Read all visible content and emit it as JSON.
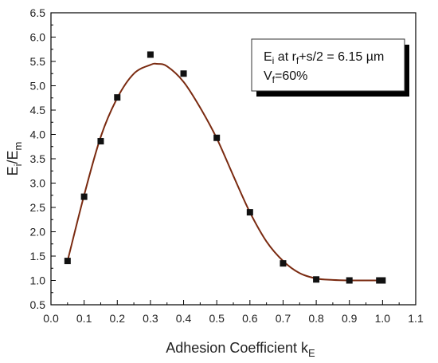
{
  "chart_data": {
    "type": "scatter",
    "xlabel": {
      "main": "Adhesion Coefficient k",
      "sub": "E"
    },
    "ylabel": {
      "a": "E",
      "a_sub": "i",
      "slash": "/",
      "b": "E",
      "b_sub": "m"
    },
    "xlim": [
      0.0,
      1.1
    ],
    "ylim": [
      0.5,
      6.5
    ],
    "x_ticks": [
      "0.0",
      "0.1",
      "0.2",
      "0.3",
      "0.4",
      "0.5",
      "0.6",
      "0.7",
      "0.8",
      "0.9",
      "1.0",
      "1.1"
    ],
    "y_ticks": [
      "0.5",
      "1.0",
      "1.5",
      "2.0",
      "2.5",
      "3.0",
      "3.5",
      "4.0",
      "4.5",
      "5.0",
      "5.5",
      "6.0",
      "6.5"
    ],
    "grid": false,
    "series": [
      {
        "kind": "markers",
        "marker": "square",
        "color": "#111111",
        "x": [
          0.05,
          0.1,
          0.15,
          0.2,
          0.3,
          0.4,
          0.5,
          0.6,
          0.7,
          0.8,
          0.9,
          0.99,
          1.0
        ],
        "y": [
          1.4,
          2.72,
          3.86,
          4.76,
          5.64,
          5.25,
          3.93,
          2.4,
          1.35,
          1.02,
          1.0,
          1.0,
          1.0
        ]
      },
      {
        "kind": "fit-curve",
        "color": "#7a2a10",
        "x": [
          0.05,
          0.1,
          0.15,
          0.2,
          0.25,
          0.3,
          0.32,
          0.35,
          0.4,
          0.45,
          0.5,
          0.55,
          0.6,
          0.65,
          0.7,
          0.75,
          0.8,
          0.85,
          0.9,
          0.95,
          1.0
        ],
        "y": [
          1.4,
          2.75,
          3.95,
          4.75,
          5.25,
          5.43,
          5.45,
          5.4,
          5.08,
          4.55,
          3.92,
          3.15,
          2.4,
          1.8,
          1.4,
          1.15,
          1.04,
          1.01,
          1.0,
          1.0,
          1.0
        ]
      }
    ],
    "annotation": {
      "line1": {
        "a": "E",
        "a_sub": "i",
        "b": " at r",
        "b_sub": "f",
        "c": "+s/2 = 6.15 µm"
      },
      "line2": {
        "a": "V",
        "a_sub": "f",
        "b": "=60%"
      },
      "placement": "top-right"
    }
  }
}
